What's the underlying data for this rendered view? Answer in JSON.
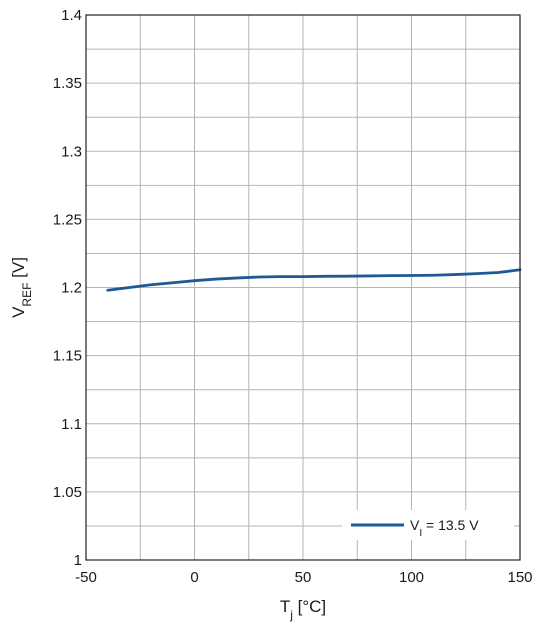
{
  "chart_data": {
    "type": "line",
    "xlabel": {
      "main": "T",
      "sub": "j",
      "rest": " [°C]"
    },
    "ylabel": {
      "main": "V",
      "sub": "REF",
      "rest": " [V]"
    },
    "xlim": [
      -50,
      150
    ],
    "ylim": [
      1,
      1.4
    ],
    "grid": true,
    "x_minor_step": 25,
    "y_minor_step": 0.025,
    "x_ticks": [
      -50,
      0,
      50,
      100,
      150
    ],
    "x_tick_labels": [
      "-50",
      "0",
      "50",
      "100",
      "150"
    ],
    "y_ticks": [
      1,
      1.05,
      1.1,
      1.15,
      1.2,
      1.25,
      1.3,
      1.35,
      1.4
    ],
    "y_tick_labels": [
      "1",
      "1.05",
      "1.1",
      "1.15",
      "1.2",
      "1.25",
      "1.3",
      "1.35",
      "1.4"
    ],
    "legend": {
      "placement": "bottom-right"
    },
    "series": [
      {
        "name": {
          "main": "V",
          "sub": "I",
          "rest": " = 13.5 V"
        },
        "color": "#1f5a96",
        "x": [
          -40,
          -30,
          -20,
          -10,
          0,
          10,
          20,
          30,
          40,
          50,
          60,
          70,
          80,
          90,
          100,
          110,
          120,
          130,
          140,
          150
        ],
        "y": [
          1.198,
          1.2,
          1.202,
          1.2035,
          1.205,
          1.2062,
          1.207,
          1.2077,
          1.208,
          1.208,
          1.2082,
          1.2083,
          1.2085,
          1.2087,
          1.2088,
          1.209,
          1.2095,
          1.2102,
          1.211,
          1.213
        ]
      }
    ]
  }
}
